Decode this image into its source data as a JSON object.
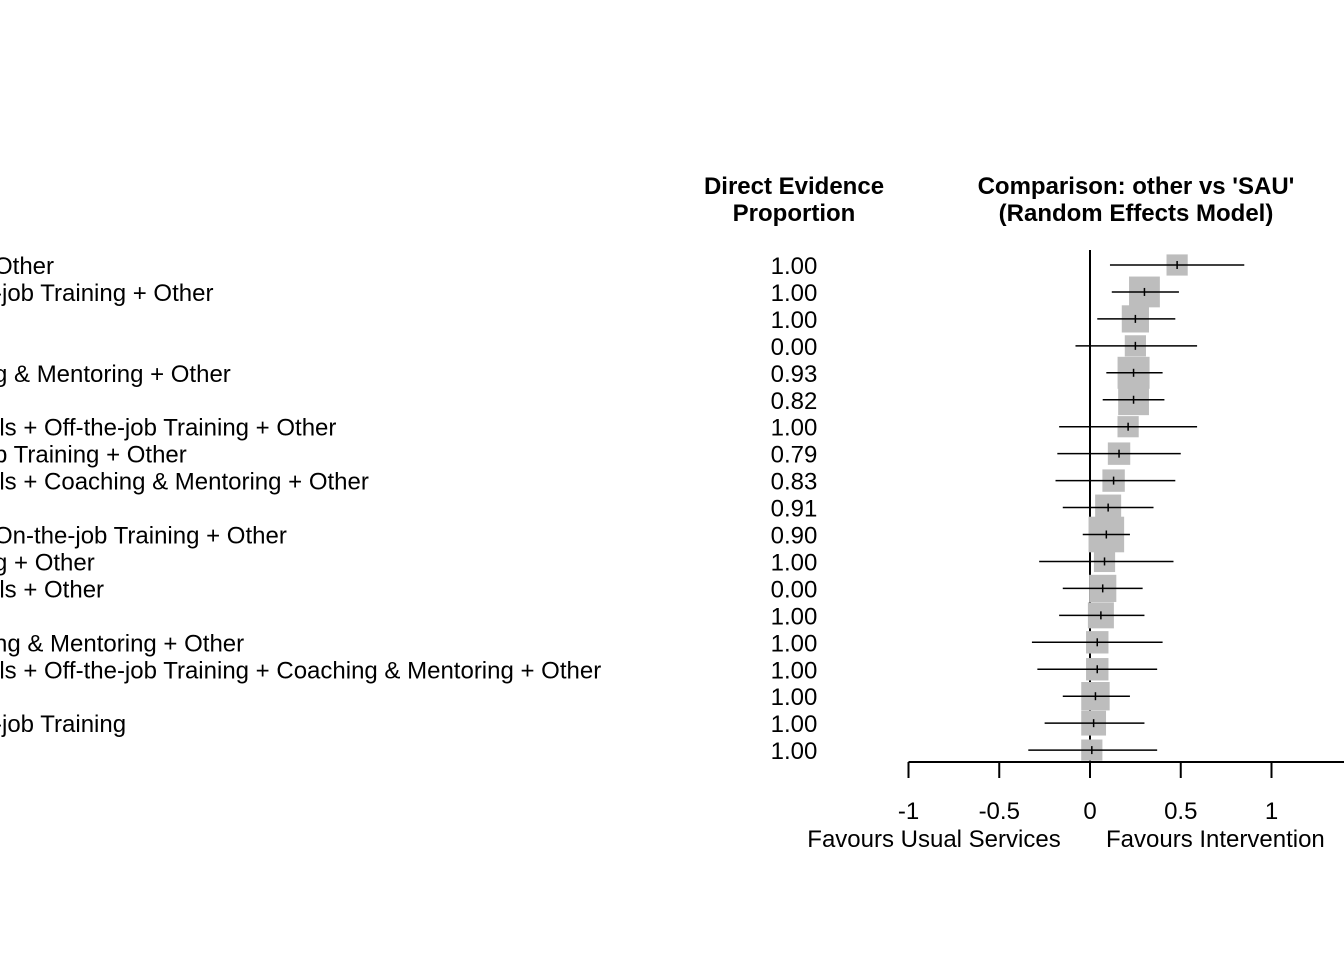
{
  "headers": {
    "evidence_line1": "Direct Evidence",
    "evidence_line2": "Proportion",
    "comparison_line1": "Comparison: other vs 'SAU'",
    "comparison_line2": "(Random Effects Model)"
  },
  "x_axis": {
    "left_label": "Favours Usual Services",
    "right_label": "Favours Intervention"
  },
  "chart_data": {
    "type": "forest",
    "xlim": [
      -1,
      1.5
    ],
    "ticks": [
      -1,
      -0.5,
      0,
      0.5,
      1
    ],
    "tick_labels": [
      "-1",
      "-0.5",
      "0",
      "0.5",
      "1"
    ],
    "reference_line": 0,
    "rows": [
      {
        "label": "Other",
        "evidence": "1.00",
        "est": 0.48,
        "lo": 0.11,
        "hi": 0.85,
        "w": 0.3
      },
      {
        "label": "-job Training + Other",
        "evidence": "1.00",
        "est": 0.3,
        "lo": 0.12,
        "hi": 0.49,
        "w": 0.7
      },
      {
        "label": "",
        "evidence": "1.00",
        "est": 0.25,
        "lo": 0.04,
        "hi": 0.47,
        "w": 0.55
      },
      {
        "label": "",
        "evidence": "0.00",
        "est": 0.25,
        "lo": -0.08,
        "hi": 0.59,
        "w": 0.3
      },
      {
        "label": "g & Mentoring + Other",
        "evidence": "0.93",
        "est": 0.24,
        "lo": 0.09,
        "hi": 0.4,
        "w": 0.75
      },
      {
        "label": "",
        "evidence": "0.82",
        "est": 0.24,
        "lo": 0.07,
        "hi": 0.41,
        "w": 0.7
      },
      {
        "label": "lls + Off-the-job Training + Other",
        "evidence": "1.00",
        "est": 0.21,
        "lo": -0.17,
        "hi": 0.59,
        "w": 0.3
      },
      {
        "label": "b Training + Other",
        "evidence": "0.79",
        "est": 0.16,
        "lo": -0.18,
        "hi": 0.5,
        "w": 0.35
      },
      {
        "label": "lls + Coaching & Mentoring + Other",
        "evidence": "0.83",
        "est": 0.13,
        "lo": -0.19,
        "hi": 0.47,
        "w": 0.35
      },
      {
        "label": "",
        "evidence": "0.91",
        "est": 0.1,
        "lo": -0.15,
        "hi": 0.35,
        "w": 0.5
      },
      {
        "label": "On-the-job Training + Other",
        "evidence": "0.90",
        "est": 0.09,
        "lo": -0.04,
        "hi": 0.22,
        "w": 0.9
      },
      {
        "label": "g + Other",
        "evidence": "1.00",
        "est": 0.08,
        "lo": -0.28,
        "hi": 0.46,
        "w": 0.3
      },
      {
        "label": "lls + Other",
        "evidence": "0.00",
        "est": 0.07,
        "lo": -0.15,
        "hi": 0.29,
        "w": 0.55
      },
      {
        "label": "",
        "evidence": "1.00",
        "est": 0.06,
        "lo": -0.17,
        "hi": 0.3,
        "w": 0.5
      },
      {
        "label": "ng & Mentoring + Other",
        "evidence": "1.00",
        "est": 0.04,
        "lo": -0.32,
        "hi": 0.4,
        "w": 0.35
      },
      {
        "label": "lls + Off-the-job Training + Coaching & Mentoring + Other",
        "evidence": "1.00",
        "est": 0.04,
        "lo": -0.29,
        "hi": 0.37,
        "w": 0.35
      },
      {
        "label": "",
        "evidence": "1.00",
        "est": 0.03,
        "lo": -0.15,
        "hi": 0.22,
        "w": 0.6
      },
      {
        "label": "-job Training",
        "evidence": "1.00",
        "est": 0.02,
        "lo": -0.25,
        "hi": 0.3,
        "w": 0.45
      },
      {
        "label": "",
        "evidence": "1.00",
        "est": 0.01,
        "lo": -0.34,
        "hi": 0.37,
        "w": 0.3
      }
    ]
  }
}
